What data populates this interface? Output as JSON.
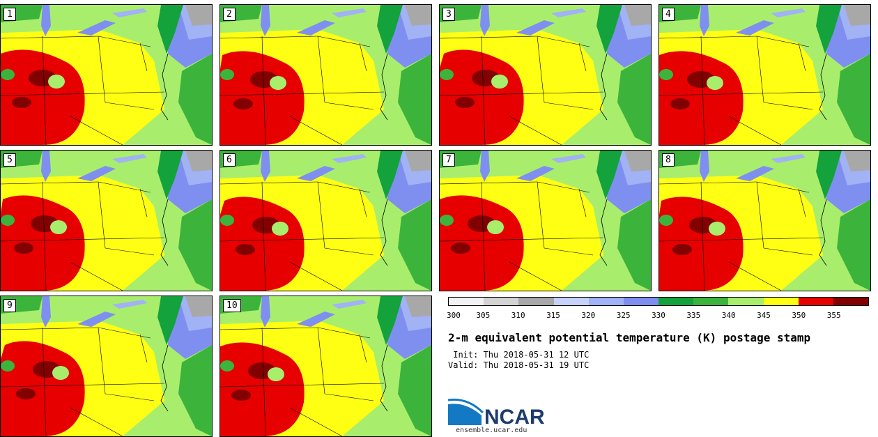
{
  "panels": [
    {
      "label": "1"
    },
    {
      "label": "2"
    },
    {
      "label": "3"
    },
    {
      "label": "4"
    },
    {
      "label": "5"
    },
    {
      "label": "6"
    },
    {
      "label": "7"
    },
    {
      "label": "8"
    },
    {
      "label": "9"
    },
    {
      "label": "10"
    }
  ],
  "colorbar": {
    "colors": [
      "#f2f2f2",
      "#d3d3d3",
      "#a8a8a8",
      "#c7d2fb",
      "#a1b2f5",
      "#7f8ff0",
      "#14a23c",
      "#3cb43c",
      "#a8ee6c",
      "#ffff14",
      "#e60000",
      "#820000"
    ],
    "ticks": [
      "300",
      "305",
      "310",
      "315",
      "320",
      "325",
      "330",
      "335",
      "340",
      "345",
      "350",
      "355"
    ]
  },
  "title": "2-m equivalent potential temperature (K) postage stamp",
  "init": " Init: Thu 2018-05-31 12 UTC",
  "valid": "Valid: Thu 2018-05-31 19 UTC",
  "logo_text": "NCAR",
  "site": "ensemble.ucar.edu"
}
